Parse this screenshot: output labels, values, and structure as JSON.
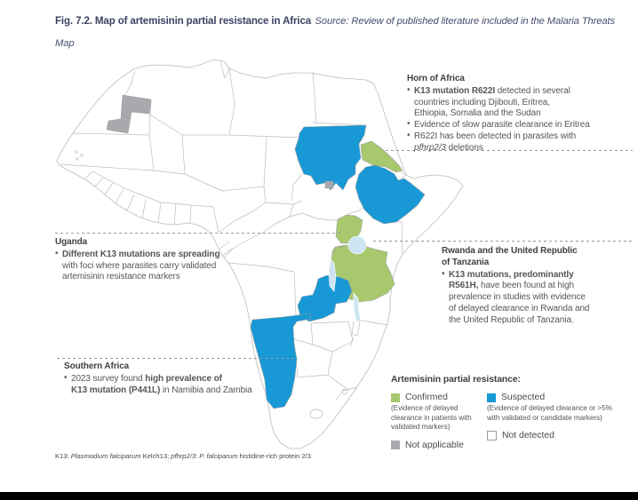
{
  "figure": {
    "heading_bold": "Fig. 7.2. Map of artemisinin partial resistance in Africa",
    "source_note": "Source: Review of published literature included in the Malaria Threats Map"
  },
  "annotations": {
    "horn_of_africa": {
      "heading": "Horn of Africa",
      "bullets": [
        [
          {
            "t": "K13 mutation R622I",
            "b": true
          },
          {
            "t": " detected in several"
          },
          {
            "br": true
          },
          {
            "t": "countries including Djibouti, Eritrea,"
          },
          {
            "br": true
          },
          {
            "t": "Ethiopia, Somalia and the Sudan"
          }
        ],
        [
          {
            "t": "Evidence of slow parasite clearance in Eritrea"
          }
        ],
        [
          {
            "t": "R622I has been detected in parasites with"
          },
          {
            "br": true
          },
          {
            "t": "pfhrp2/3",
            "i": true
          },
          {
            "t": " deletions"
          }
        ]
      ]
    },
    "uganda": {
      "heading": "Uganda",
      "bullets": [
        [
          {
            "t": "Different K13 mutations are spreading",
            "b": true
          },
          {
            "br": true
          },
          {
            "t": "with foci where parasites carry validated"
          },
          {
            "br": true
          },
          {
            "t": "artemisinin resistance markers"
          }
        ]
      ]
    },
    "rwanda_tanzania": {
      "heading": [
        {
          "t": "Rwanda and the United Republic"
        },
        {
          "br": true
        },
        {
          "t": "of Tanzania"
        }
      ],
      "bullets": [
        [
          {
            "t": "K13 mutations, predominantly",
            "b": true
          },
          {
            "br": true
          },
          {
            "t": "R561H,",
            "b": true
          },
          {
            "t": " have been found at high"
          },
          {
            "br": true
          },
          {
            "t": "prevalence in studies with evidence"
          },
          {
            "br": true
          },
          {
            "t": "of delayed clearance in Rwanda and"
          },
          {
            "br": true
          },
          {
            "t": "the United Republic of Tanzania."
          }
        ]
      ]
    },
    "southern_africa": {
      "heading": "Southern Africa",
      "bullets": [
        [
          {
            "t": "2023 survey found "
          },
          {
            "t": "high prevalence of",
            "b": true
          },
          {
            "br": true
          },
          {
            "t": "K13 mutation (P441L)",
            "b": true
          },
          {
            "t": " in Namibia and Zambia"
          }
        ]
      ]
    }
  },
  "legend": {
    "title": "Artemisinin partial resistance:",
    "items": [
      {
        "key": "confirmed",
        "label": "Confirmed",
        "note": "(Evidence of delayed clearance in patients with validated markers)"
      },
      {
        "key": "suspected",
        "label": "Suspected",
        "note": "(Evidence of delayed clearance or >5% with validated or candidate markers)"
      },
      {
        "key": "not_applicable",
        "label": "Not applicable",
        "note": ""
      },
      {
        "key": "not_detected",
        "label": "Not detected",
        "note": ""
      }
    ]
  },
  "map": {
    "status_colors": {
      "confirmed": "#a8c86e",
      "suspected": "#1899d6",
      "not_applicable": "#a7a9ac",
      "not_detected": "#ffffff"
    },
    "regions": {
      "sudan": "suspected",
      "ethiopia": "suspected",
      "zambia": "suspected",
      "namibia": "suspected",
      "eritrea": "confirmed",
      "uganda": "confirmed",
      "rwanda": "confirmed",
      "tanzania": "confirmed",
      "western_sahara": "not_applicable",
      "abyei": "not_applicable"
    },
    "lake_color": "#cde5f2",
    "border_color": "#babcbe"
  },
  "footnote": {
    "segments": [
      {
        "t": "K13: "
      },
      {
        "t": "Plasmodium falciparum",
        "i": true
      },
      {
        "t": " Kelch13; "
      },
      {
        "t": "pfhrp2/3",
        "i": true
      },
      {
        "t": ": "
      },
      {
        "t": "P. falciparum",
        "i": true
      },
      {
        "t": " histidine-rich protein 2/3."
      }
    ]
  }
}
